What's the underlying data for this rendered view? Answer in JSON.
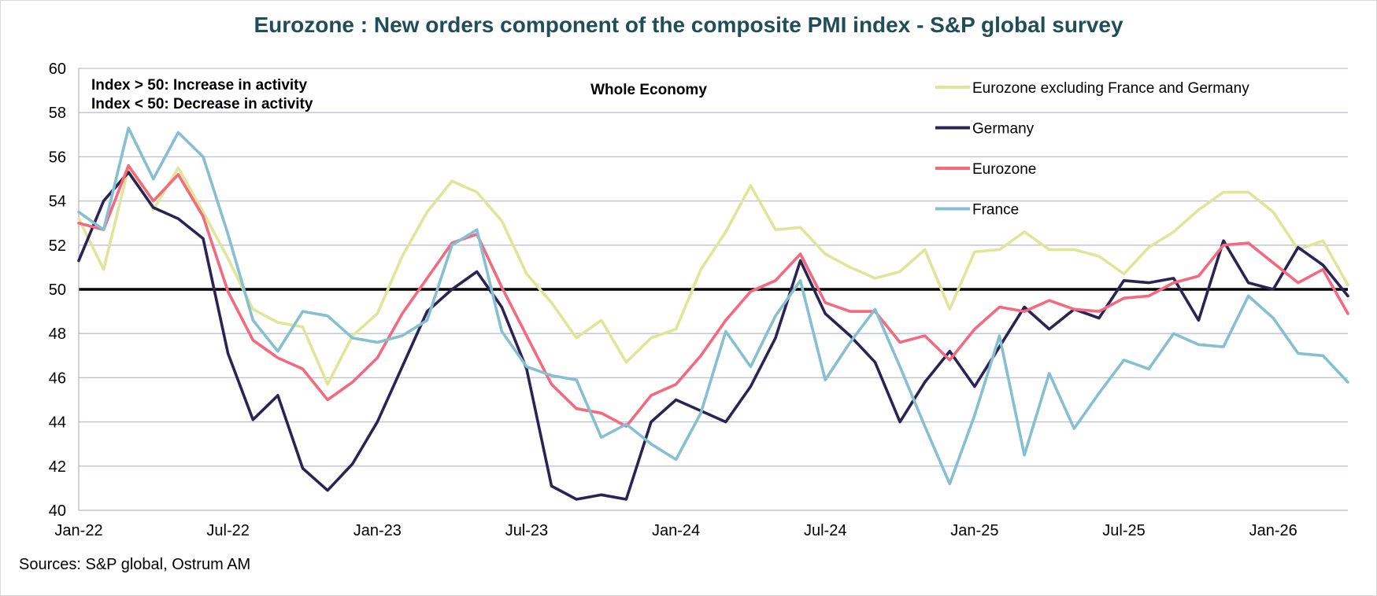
{
  "chart_data": {
    "type": "line",
    "title": "Eurozone : New orders component of the composite PMI index - S&P global survey",
    "subtitle": "Whole Economy",
    "annotations": [
      "Index > 50: Increase in activity",
      "Index < 50: Decrease in activity"
    ],
    "source": "Sources: S&P global, Ostrum AM",
    "xlabel": "",
    "ylabel": "",
    "ylim": [
      40,
      60
    ],
    "yticks": [
      40,
      42,
      44,
      46,
      48,
      50,
      52,
      54,
      56,
      58,
      60
    ],
    "reference_line": 50,
    "x_tick_labels": [
      "Jan-22",
      "Jul-22",
      "Jan-23",
      "Jul-23",
      "Jan-24",
      "Jul-24",
      "Jan-25",
      "Jul-25",
      "Jan-26"
    ],
    "x_tick_index": [
      0,
      6,
      12,
      18,
      24,
      30,
      36,
      42,
      48
    ],
    "n_points": 52,
    "legend_position": "top-right",
    "grid": true,
    "series": [
      {
        "name": "Eurozone excluding France and Germany",
        "color": "#dfe69a",
        "values": [
          53.2,
          50.9,
          55.5,
          53.6,
          55.5,
          53.5,
          51.4,
          49.1,
          48.5,
          48.3,
          45.7,
          47.9,
          48.9,
          51.5,
          53.5,
          54.9,
          54.4,
          53.1,
          50.7,
          49.4,
          47.8,
          48.6,
          46.7,
          47.8,
          48.2,
          50.9,
          52.6,
          54.7,
          52.7,
          52.8,
          51.6,
          51.0,
          50.5,
          50.8,
          51.8,
          49.1,
          51.7,
          51.8,
          52.6,
          51.8,
          51.8,
          51.5,
          50.7,
          51.9,
          52.6,
          53.6,
          54.4,
          54.4,
          53.5,
          51.8,
          52.2,
          50.2
        ]
      },
      {
        "name": "Germany",
        "color": "#2a2354",
        "values": [
          51.3,
          54.0,
          55.3,
          53.7,
          53.2,
          52.3,
          47.1,
          44.1,
          45.2,
          41.9,
          40.9,
          42.1,
          44.0,
          46.5,
          49.0,
          50.0,
          50.8,
          49.2,
          46.4,
          41.1,
          40.5,
          40.7,
          40.5,
          44.0,
          45.0,
          44.5,
          44.0,
          45.6,
          47.8,
          51.3,
          48.9,
          47.9,
          46.7,
          44.0,
          45.8,
          47.2,
          45.6,
          47.4,
          49.2,
          48.2,
          49.1,
          48.7,
          50.4,
          50.3,
          50.5,
          48.6,
          52.2,
          50.3,
          50.0,
          51.9,
          51.1,
          49.7
        ]
      },
      {
        "name": "Eurozone",
        "color": "#f4697d",
        "values": [
          53.0,
          52.7,
          55.6,
          54.0,
          55.2,
          53.3,
          49.9,
          47.7,
          46.9,
          46.4,
          45.0,
          45.8,
          46.9,
          48.9,
          50.5,
          52.1,
          52.5,
          50.1,
          47.9,
          45.7,
          44.6,
          44.4,
          43.8,
          45.2,
          45.7,
          47.0,
          48.6,
          49.9,
          50.4,
          51.6,
          49.4,
          49.0,
          49.0,
          47.6,
          47.9,
          46.8,
          48.2,
          49.2,
          49.0,
          49.5,
          49.1,
          49.0,
          49.6,
          49.7,
          50.3,
          50.6,
          52.0,
          52.1,
          51.2,
          50.3,
          50.9,
          48.9
        ]
      },
      {
        "name": "France",
        "color": "#86bfd2",
        "values": [
          53.5,
          52.7,
          57.3,
          55.0,
          57.1,
          56.0,
          52.5,
          48.6,
          47.2,
          49.0,
          48.8,
          47.8,
          47.6,
          47.9,
          48.6,
          52.0,
          52.7,
          48.1,
          46.5,
          46.1,
          45.9,
          43.3,
          43.9,
          43.0,
          42.3,
          44.4,
          48.1,
          46.5,
          48.8,
          50.4,
          45.9,
          47.6,
          49.1,
          46.5,
          43.8,
          41.2,
          44.3,
          47.9,
          42.5,
          46.2,
          43.7,
          45.3,
          46.8,
          46.4,
          48.0,
          47.5,
          47.4,
          49.7,
          48.7,
          47.1,
          47.0,
          45.8
        ]
      }
    ]
  }
}
